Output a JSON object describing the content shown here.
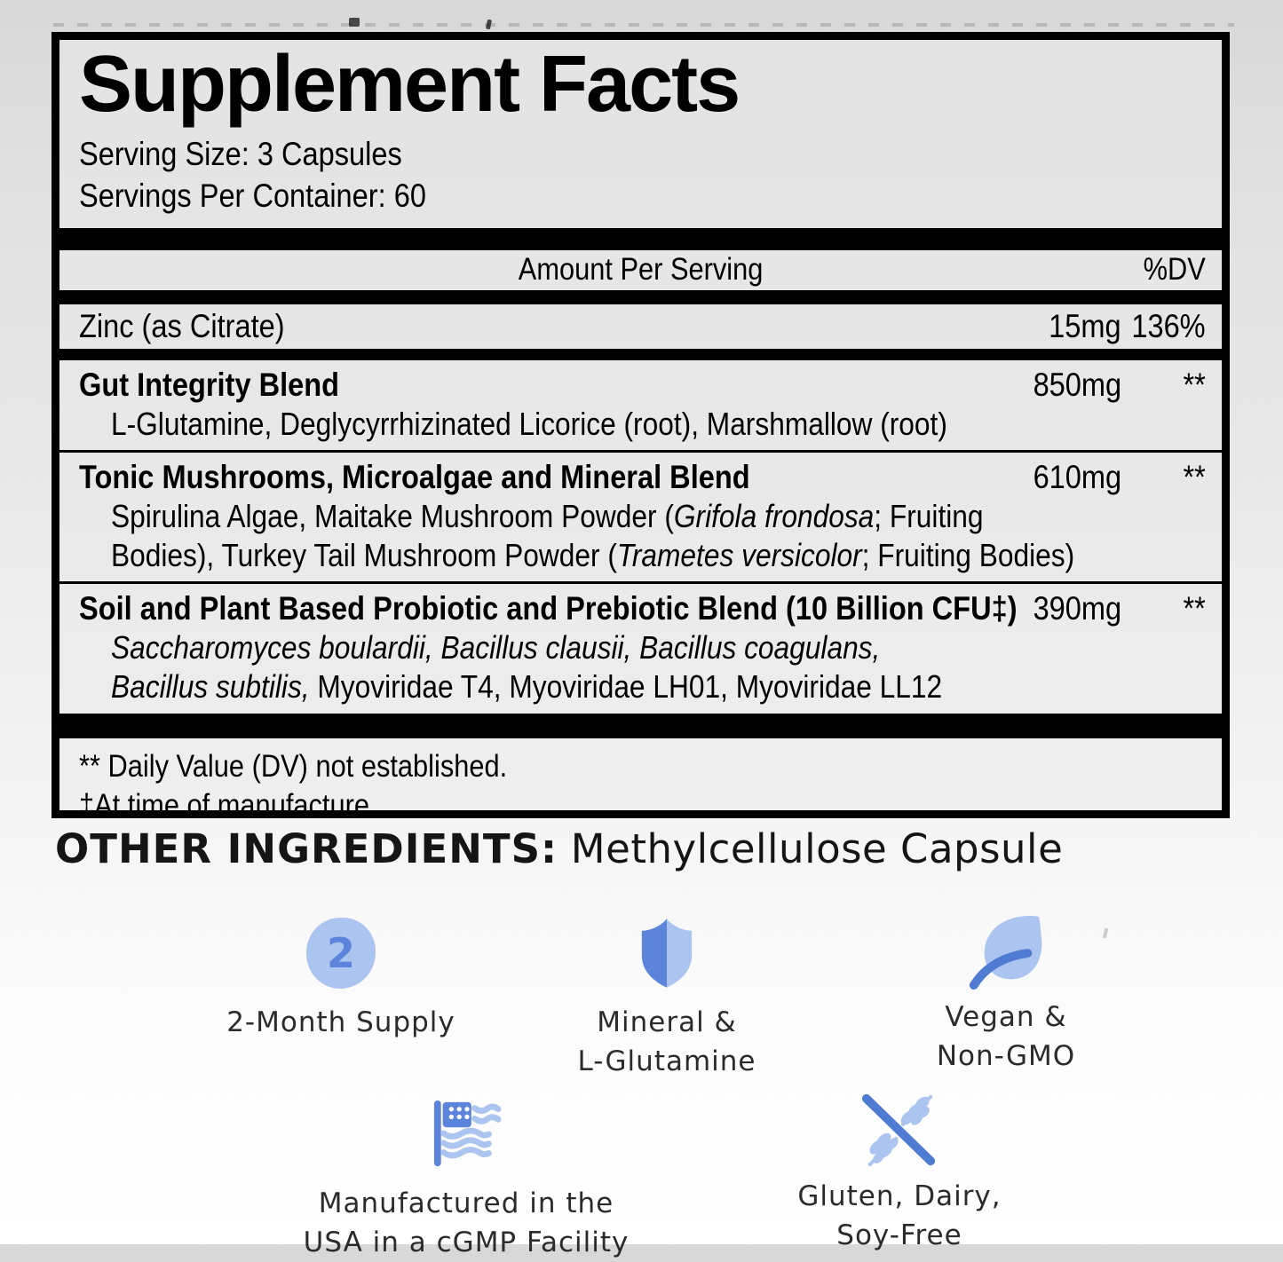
{
  "panel": {
    "title": "Supplement Facts",
    "serving_size": "Serving Size: 3 Capsules",
    "servings_per_container": "Servings Per Container: 60",
    "column_headers": {
      "amount": "Amount Per Serving",
      "dv": "%DV"
    },
    "zinc_row": {
      "name": "Zinc (as Citrate)",
      "amount": "15mg",
      "dv": "136%"
    },
    "blends": [
      {
        "name": "Gut Integrity Blend",
        "amount": "850mg",
        "dv": "**",
        "sub_lines": [
          [
            {
              "text": "L-Glutamine, Deglycyrrhizinated Licorice (root), Marshmallow (root)"
            }
          ]
        ]
      },
      {
        "name": "Tonic Mushrooms, Microalgae and Mineral Blend",
        "amount": "610mg",
        "dv": "**",
        "sub_lines": [
          [
            {
              "text": "Spirulina Algae, Maitake Mushroom Powder ("
            },
            {
              "text": "Grifola frondosa",
              "italic": true
            },
            {
              "text": "; Fruiting"
            }
          ],
          [
            {
              "text": "Bodies), Turkey Tail Mushroom Powder ("
            },
            {
              "text": "Trametes versicolor",
              "italic": true
            },
            {
              "text": "; Fruiting Bodies)"
            }
          ]
        ]
      },
      {
        "name": "Soil and Plant Based Probiotic and Prebiotic Blend (10 Billion CFU‡)",
        "amount": "390mg",
        "dv": "**",
        "sub_lines": [
          [
            {
              "text": "Saccharomyces boulardii, Bacillus clausii, Bacillus coagulans,",
              "italic": true
            }
          ],
          [
            {
              "text": "Bacillus subtilis,",
              "italic": true
            },
            {
              "text": " Myoviridae T4, Myoviridae LH01, Myoviridae LL12"
            }
          ]
        ]
      }
    ],
    "footnotes": [
      "** Daily Value (DV) not established.",
      "‡At time of manufacture."
    ]
  },
  "other_ingredients": {
    "label": "OTHER INGREDIENTS:",
    "value": " Methylcellulose Capsule"
  },
  "badges": [
    {
      "icon": "two-month-circle-icon",
      "number": "2",
      "lines": [
        "2-Month Supply"
      ]
    },
    {
      "icon": "shield-icon",
      "lines": [
        "Mineral &",
        "L-Glutamine"
      ]
    },
    {
      "icon": "leaf-icon",
      "lines": [
        "Vegan &",
        "Non-GMO"
      ]
    },
    {
      "icon": "usa-flag-icon",
      "lines": [
        "Manufactured in the",
        "USA in a cGMP Facility"
      ]
    },
    {
      "icon": "no-gluten-icon",
      "lines": [
        "Gluten, Dairy,",
        "Soy-Free"
      ]
    }
  ],
  "colors": {
    "icon_blue_dark": "#5b84da",
    "icon_blue_light": "#abc4f0",
    "icon_stroke_blue": "#4f7bd2"
  }
}
